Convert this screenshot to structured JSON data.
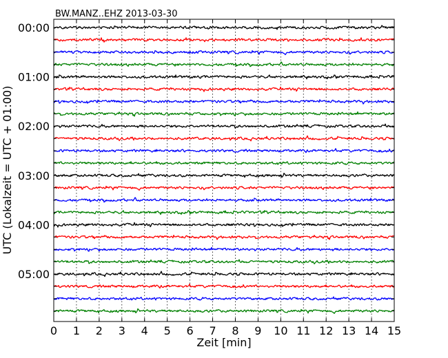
{
  "chart_data": {
    "type": "line",
    "title": "BW.MANZ..EHZ 2013-03-30",
    "xlabel": "Zeit  [min]",
    "ylabel": "UTC (Lokalzeit = UTC + 01:00)",
    "xlim": [
      0,
      15
    ],
    "x_ticks": [
      "0",
      "1",
      "2",
      "3",
      "4",
      "5",
      "6",
      "7",
      "8",
      "9",
      "10",
      "11",
      "12",
      "13",
      "14",
      "15"
    ],
    "x_grid": "dotted vertical at each minute",
    "y_ticks": [
      "00:00",
      "01:00",
      "02:00",
      "03:00",
      "04:00",
      "05:00"
    ],
    "trace_interval_min": 15,
    "trace_count": 24,
    "trace_colors": [
      "#000000",
      "#ff0000",
      "#0000ff",
      "#008000"
    ],
    "series_note": "each row is a seismic noise trace covering 15 minutes; rows start at 00:00 and advance by 15 min, colors cycle black-red-blue-green"
  }
}
